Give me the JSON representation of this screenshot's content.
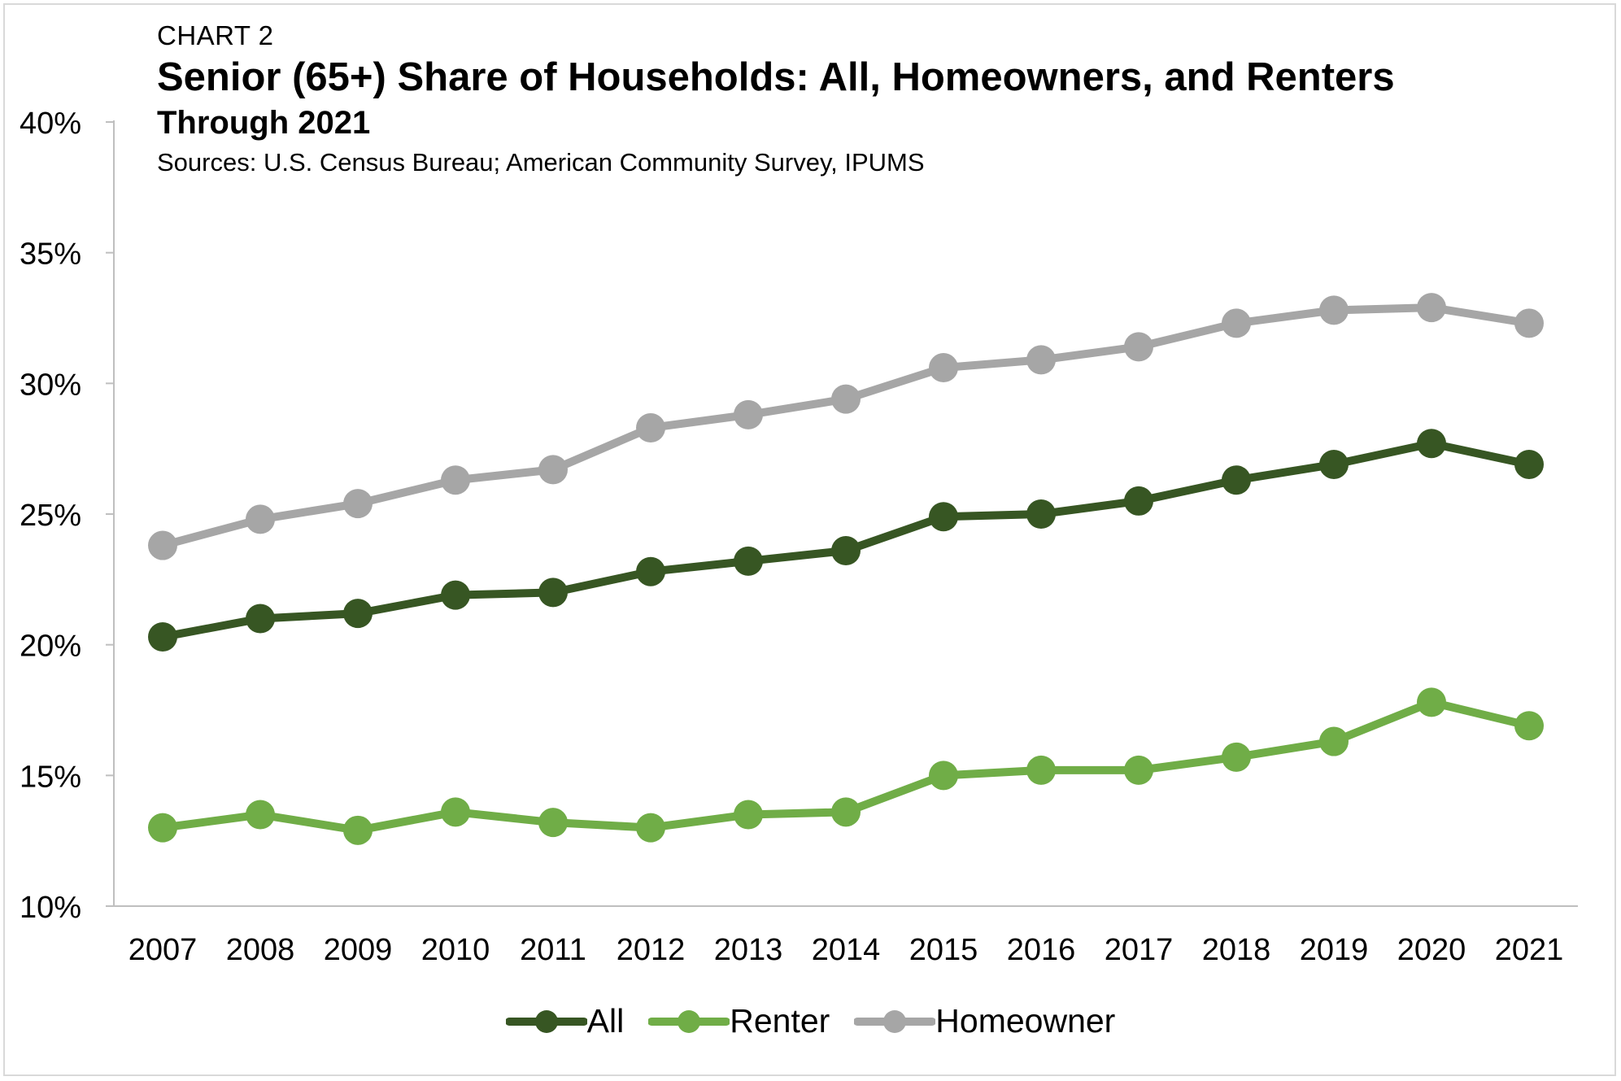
{
  "header": {
    "chart_label": "CHART 2",
    "title": "Senior (65+) Share of Households: All, Homeowners, and Renters",
    "subtitle": "Through 2021",
    "source": "Sources: U.S. Census Bureau; American Community Survey, IPUMS"
  },
  "chart_data": {
    "type": "line",
    "title": "Senior (65+) Share of Households: All, Homeowners, and Renters",
    "subtitle": "Through 2021",
    "xlabel": "",
    "ylabel": "",
    "x": [
      "2007",
      "2008",
      "2009",
      "2010",
      "2011",
      "2012",
      "2013",
      "2014",
      "2015",
      "2016",
      "2017",
      "2018",
      "2019",
      "2020",
      "2021"
    ],
    "ylim": [
      10,
      40
    ],
    "yticks": [
      10,
      15,
      20,
      25,
      30,
      35,
      40
    ],
    "ytick_labels": [
      "10%",
      "15%",
      "20%",
      "25%",
      "30%",
      "35%",
      "40%"
    ],
    "grid": false,
    "legend_position": "bottom",
    "series": [
      {
        "name": "All",
        "color": "#375623",
        "values": [
          20.3,
          21.0,
          21.2,
          21.9,
          22.0,
          22.8,
          23.2,
          23.6,
          24.9,
          25.0,
          25.5,
          26.3,
          26.9,
          27.7,
          26.9
        ]
      },
      {
        "name": "Renter",
        "color": "#70ad47",
        "values": [
          13.0,
          13.5,
          12.9,
          13.6,
          13.2,
          13.0,
          13.5,
          13.6,
          15.0,
          15.2,
          15.2,
          15.7,
          16.3,
          17.8,
          16.9
        ]
      },
      {
        "name": "Homeowner",
        "color": "#a6a6a6",
        "values": [
          23.8,
          24.8,
          25.4,
          26.3,
          26.7,
          28.3,
          28.8,
          29.4,
          30.6,
          30.9,
          31.4,
          32.3,
          32.8,
          32.9,
          32.3
        ]
      }
    ]
  }
}
